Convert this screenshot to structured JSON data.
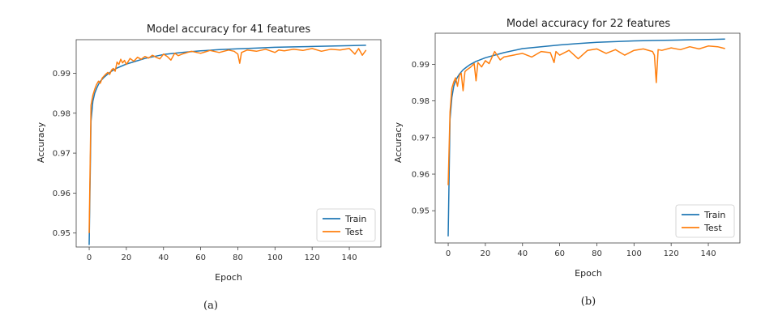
{
  "chart_data": [
    {
      "type": "line",
      "title": "Model accuracy for 41 features",
      "xlabel": "Epoch",
      "ylabel": "Accuracy",
      "caption": "(a)",
      "xlim": [
        -7,
        157
      ],
      "ylim": [
        0.9465,
        0.9984
      ],
      "xticks": [
        0,
        20,
        40,
        60,
        80,
        100,
        120,
        140
      ],
      "yticks": [
        0.95,
        0.96,
        0.97,
        0.98,
        0.99
      ],
      "ytick_labels": [
        "0.95",
        "0.96",
        "0.97",
        "0.98",
        "0.99"
      ],
      "legend": "lower-right",
      "grid": false,
      "series": [
        {
          "name": "Train",
          "color": "#1f77b4",
          "x": [
            0,
            1,
            2,
            3,
            4,
            5,
            6,
            8,
            10,
            12,
            15,
            20,
            25,
            30,
            40,
            50,
            60,
            70,
            80,
            90,
            100,
            110,
            120,
            130,
            140,
            149
          ],
          "y": [
            0.947,
            0.978,
            0.983,
            0.985,
            0.9862,
            0.9872,
            0.988,
            0.989,
            0.9898,
            0.9905,
            0.9913,
            0.9923,
            0.993,
            0.9937,
            0.9947,
            0.9952,
            0.9956,
            0.9959,
            0.9961,
            0.9963,
            0.9965,
            0.9966,
            0.9967,
            0.9968,
            0.9969,
            0.997
          ]
        },
        {
          "name": "Test",
          "color": "#ff7f0e",
          "x": [
            0,
            1,
            2,
            3,
            4,
            5,
            6,
            7,
            8,
            9,
            10,
            11,
            12,
            13,
            14,
            15,
            16,
            17,
            18,
            19,
            20,
            22,
            24,
            26,
            28,
            30,
            32,
            34,
            36,
            38,
            40,
            42,
            44,
            46,
            48,
            50,
            55,
            60,
            65,
            70,
            75,
            78,
            80,
            81,
            82,
            85,
            90,
            95,
            100,
            102,
            105,
            110,
            115,
            120,
            125,
            130,
            135,
            140,
            143,
            145,
            147,
            149
          ],
          "y": [
            0.95,
            0.982,
            0.9845,
            0.986,
            0.9872,
            0.988,
            0.9875,
            0.9888,
            0.9893,
            0.9898,
            0.9902,
            0.9897,
            0.9908,
            0.9912,
            0.9905,
            0.9928,
            0.9922,
            0.9935,
            0.9926,
            0.9932,
            0.9922,
            0.9937,
            0.993,
            0.994,
            0.9935,
            0.9942,
            0.9938,
            0.9945,
            0.994,
            0.9936,
            0.9948,
            0.9942,
            0.9933,
            0.995,
            0.9944,
            0.9948,
            0.9955,
            0.995,
            0.9957,
            0.9952,
            0.9958,
            0.9955,
            0.9948,
            0.9925,
            0.9952,
            0.9958,
            0.9955,
            0.996,
            0.9952,
            0.9958,
            0.9956,
            0.996,
            0.9957,
            0.9962,
            0.9955,
            0.996,
            0.9958,
            0.9962,
            0.9948,
            0.9962,
            0.9945,
            0.9958
          ]
        }
      ]
    },
    {
      "type": "line",
      "title": "Model accuracy for 22 features",
      "xlabel": "Epoch",
      "ylabel": "Accuracy",
      "caption": "(b)",
      "xlim": [
        -7,
        157
      ],
      "ylim": [
        0.9412,
        0.9985
      ],
      "xticks": [
        0,
        20,
        40,
        60,
        80,
        100,
        120,
        140
      ],
      "yticks": [
        0.95,
        0.96,
        0.97,
        0.98,
        0.99
      ],
      "ytick_labels": [
        "0.95",
        "0.96",
        "0.97",
        "0.98",
        "0.99"
      ],
      "legend": "lower-right",
      "grid": false,
      "series": [
        {
          "name": "Train",
          "color": "#1f77b4",
          "x": [
            0,
            1,
            2,
            3,
            4,
            5,
            6,
            8,
            10,
            12,
            15,
            20,
            25,
            30,
            40,
            50,
            60,
            70,
            80,
            90,
            100,
            110,
            120,
            130,
            140,
            149
          ],
          "y": [
            0.943,
            0.975,
            0.981,
            0.984,
            0.9855,
            0.9865,
            0.9873,
            0.9885,
            0.9893,
            0.99,
            0.9908,
            0.9918,
            0.9925,
            0.9932,
            0.9943,
            0.9948,
            0.9953,
            0.9957,
            0.996,
            0.9962,
            0.9964,
            0.9965,
            0.9966,
            0.9967,
            0.9968,
            0.9969
          ]
        },
        {
          "name": "Test",
          "color": "#ff7f0e",
          "x": [
            0,
            1,
            2,
            3,
            4,
            5,
            6,
            7,
            8,
            9,
            10,
            12,
            14,
            15,
            16,
            18,
            20,
            22,
            25,
            28,
            30,
            35,
            40,
            45,
            50,
            55,
            57,
            58,
            60,
            65,
            70,
            75,
            80,
            85,
            90,
            95,
            100,
            105,
            110,
            111,
            112,
            113,
            115,
            120,
            125,
            130,
            135,
            140,
            145,
            149
          ],
          "y": [
            0.957,
            0.977,
            0.9835,
            0.9852,
            0.9863,
            0.984,
            0.987,
            0.9876,
            0.9828,
            0.988,
            0.9885,
            0.9892,
            0.9902,
            0.9855,
            0.9905,
            0.9893,
            0.991,
            0.9902,
            0.9935,
            0.9912,
            0.992,
            0.9925,
            0.993,
            0.992,
            0.9935,
            0.9932,
            0.9905,
            0.9935,
            0.9925,
            0.9938,
            0.9915,
            0.9938,
            0.9942,
            0.993,
            0.994,
            0.9925,
            0.9938,
            0.9942,
            0.9935,
            0.9925,
            0.985,
            0.994,
            0.9938,
            0.9945,
            0.994,
            0.9948,
            0.9942,
            0.995,
            0.9948,
            0.9943
          ]
        }
      ]
    }
  ]
}
